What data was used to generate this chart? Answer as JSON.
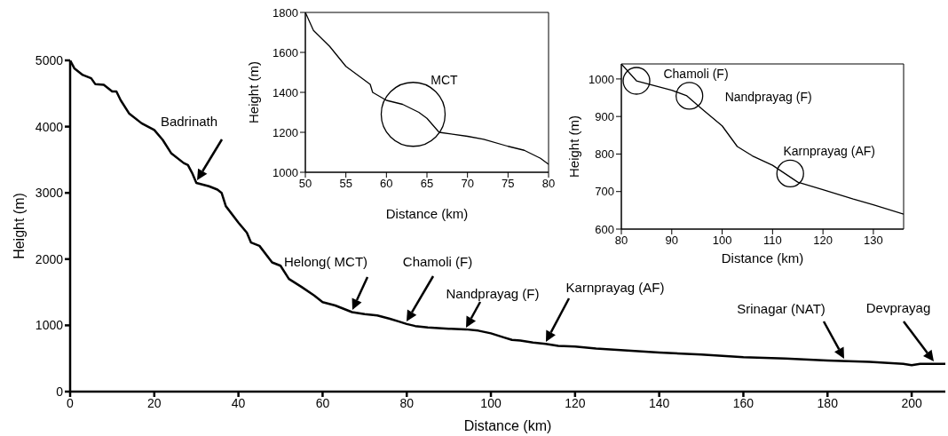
{
  "chart_data": [
    {
      "type": "line",
      "xlabel": "Distance (km)",
      "ylabel": "Height (m)",
      "xlim": [
        0,
        208
      ],
      "xticks": [
        0,
        20,
        40,
        60,
        80,
        100,
        120,
        140,
        160,
        180,
        200
      ],
      "ylim": [
        0,
        5000
      ],
      "yticks": [
        0,
        1000,
        2000,
        3000,
        4000,
        5000
      ],
      "color": "#000000",
      "x": [
        0,
        1,
        3,
        5,
        6,
        8,
        10,
        11,
        12,
        14,
        17,
        20,
        22,
        24,
        27,
        28,
        29,
        30,
        33,
        35,
        36,
        37,
        40,
        42,
        43,
        45,
        48,
        50,
        52,
        55,
        58,
        60,
        63,
        65,
        67,
        70,
        73,
        76,
        78,
        80,
        82,
        85,
        90,
        94,
        97,
        100,
        103,
        105,
        107,
        110,
        113,
        116,
        120,
        125,
        130,
        135,
        140,
        150,
        160,
        170,
        180,
        190,
        198,
        200,
        202,
        208
      ],
      "values": [
        5000,
        4880,
        4780,
        4730,
        4640,
        4630,
        4530,
        4530,
        4400,
        4200,
        4050,
        3950,
        3800,
        3600,
        3450,
        3420,
        3300,
        3150,
        3100,
        3050,
        3000,
        2800,
        2550,
        2400,
        2250,
        2200,
        1950,
        1900,
        1700,
        1580,
        1450,
        1350,
        1300,
        1250,
        1200,
        1170,
        1150,
        1100,
        1060,
        1020,
        990,
        970,
        950,
        940,
        920,
        880,
        820,
        780,
        770,
        740,
        720,
        690,
        680,
        650,
        630,
        610,
        590,
        560,
        520,
        500,
        470,
        450,
        420,
        400,
        420,
        420
      ],
      "annotations": [
        "Badrinath",
        "Helong( MCT)",
        "Chamoli (F)",
        "Nandprayag (F)",
        "Karnprayag (AF)",
        "Srinagar (NAT)",
        "Devprayag"
      ]
    },
    {
      "type": "line",
      "xlabel": "Distance (km)",
      "ylabel": "Height (m)",
      "xlim": [
        50,
        80
      ],
      "xticks": [
        50,
        55,
        60,
        65,
        70,
        75,
        80
      ],
      "ylim": [
        1000,
        1800
      ],
      "yticks": [
        1000,
        1200,
        1400,
        1600,
        1800
      ],
      "color": "#000000",
      "x": [
        50,
        51,
        53,
        55,
        57,
        58,
        58.3,
        60,
        62,
        64,
        65,
        66.5,
        70,
        72,
        75,
        77,
        79,
        80
      ],
      "values": [
        1800,
        1710,
        1630,
        1530,
        1470,
        1440,
        1400,
        1360,
        1340,
        1300,
        1270,
        1200,
        1180,
        1165,
        1130,
        1110,
        1070,
        1040
      ],
      "annotations": [
        {
          "text": "MCT",
          "x": 63.3,
          "y": 1290
        }
      ]
    },
    {
      "type": "line",
      "xlabel": "Distance (km)",
      "ylabel": "Height (m)",
      "xlim": [
        80,
        136
      ],
      "xticks": [
        80,
        90,
        100,
        110,
        120,
        130
      ],
      "ylim": [
        600,
        1040
      ],
      "yticks": [
        600,
        700,
        800,
        900,
        1000
      ],
      "color": "#000000",
      "x": [
        80,
        83,
        90,
        93,
        96,
        100,
        103,
        106,
        110,
        115,
        120,
        126,
        130,
        136
      ],
      "values": [
        1040,
        995,
        970,
        955,
        920,
        875,
        820,
        795,
        770,
        725,
        705,
        680,
        665,
        640
      ],
      "annotations": [
        {
          "text": "Chamoli (F)",
          "x": 83,
          "y": 995
        },
        {
          "text": "Nandprayag (F)",
          "x": 93.5,
          "y": 955
        },
        {
          "text": "Karnprayag (AF)",
          "x": 113.5,
          "y": 748
        }
      ]
    }
  ]
}
